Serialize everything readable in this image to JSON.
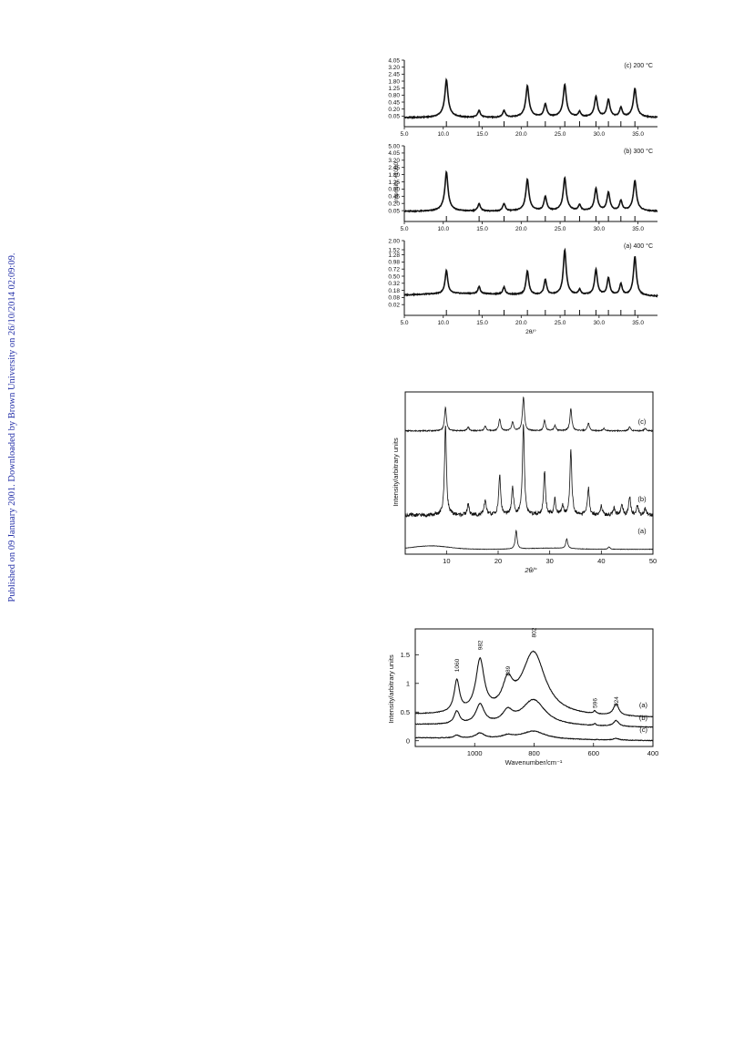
{
  "side_note": "Published on 09 January 2001. Downloaded by Brown University on 26/10/2014 02:09:09.",
  "chart_data": [
    {
      "type": "line",
      "figure": "xrd-temperature",
      "xlabel": "2θ/°",
      "ylabel": "Intensity ×1000",
      "xlim": [
        5.0,
        37.5
      ],
      "xticks": [
        "5.0",
        "10.0",
        "15.0",
        "20.0",
        "25.0",
        "30.0",
        "35.0"
      ],
      "x_tick_values": [
        5,
        10,
        15,
        20,
        25,
        30,
        35
      ],
      "sqrt_scale": true,
      "panels": [
        {
          "name": "(c) 200 °C",
          "ylim": [
            0,
            4.05
          ],
          "yticks": [
            "0.05",
            "0.20",
            "0.45",
            "0.80",
            "1.25",
            "1.80",
            "2.45",
            "3.20",
            "4.05"
          ],
          "y_tick_values": [
            0.05,
            0.2,
            0.45,
            0.8,
            1.25,
            1.8,
            2.45,
            3.2,
            4.05
          ],
          "peaks": [
            [
              10.4,
              1.9
            ],
            [
              14.6,
              0.13
            ],
            [
              17.8,
              0.13
            ],
            [
              20.8,
              1.4
            ],
            [
              23.1,
              0.35
            ],
            [
              25.6,
              1.5
            ],
            [
              27.5,
              0.1
            ],
            [
              29.6,
              0.7
            ],
            [
              31.2,
              0.55
            ],
            [
              32.8,
              0.22
            ],
            [
              34.6,
              1.2
            ]
          ],
          "baseline": 0.03
        },
        {
          "name": "(b) 300 °C",
          "ylim": [
            0,
            5.0
          ],
          "yticks": [
            "0.05",
            "0.20",
            "0.45",
            "0.80",
            "1.25",
            "1.80",
            "2.45",
            "3.20",
            "4.05",
            "5.00"
          ],
          "y_tick_values": [
            0.05,
            0.2,
            0.45,
            0.8,
            1.25,
            1.8,
            2.45,
            3.2,
            4.05,
            5.0
          ],
          "peaks": [
            [
              10.4,
              2.0
            ],
            [
              14.6,
              0.15
            ],
            [
              17.8,
              0.15
            ],
            [
              20.8,
              1.4
            ],
            [
              23.1,
              0.4
            ],
            [
              25.6,
              1.5
            ],
            [
              27.5,
              0.12
            ],
            [
              29.6,
              0.8
            ],
            [
              31.2,
              0.6
            ],
            [
              32.8,
              0.25
            ],
            [
              34.6,
              1.3
            ]
          ],
          "baseline": 0.04
        },
        {
          "name": "(a) 400 °C",
          "ylim": [
            0,
            2.0
          ],
          "yticks": [
            "0.02",
            "0.08",
            "0.18",
            "0.32",
            "0.50",
            "0.72",
            "0.98",
            "1.28",
            "1.52",
            "2.00"
          ],
          "y_tick_values": [
            0.02,
            0.08,
            0.18,
            0.32,
            0.5,
            0.72,
            0.98,
            1.28,
            1.52,
            2.0
          ],
          "peaks": [
            [
              10.4,
              0.55
            ],
            [
              14.6,
              0.12
            ],
            [
              17.8,
              0.12
            ],
            [
              20.8,
              0.55
            ],
            [
              23.1,
              0.3
            ],
            [
              25.6,
              1.4
            ],
            [
              27.5,
              0.08
            ],
            [
              29.6,
              0.6
            ],
            [
              31.2,
              0.35
            ],
            [
              32.8,
              0.2
            ],
            [
              34.6,
              1.1
            ]
          ],
          "baseline": 0.08,
          "hump": true
        }
      ]
    },
    {
      "type": "line",
      "figure": "xrd-samples",
      "xlabel": "2θ/°",
      "ylabel": "Intensity/arbitrary units",
      "xlim": [
        2,
        50
      ],
      "xticks": [
        "10",
        "20",
        "30",
        "40",
        "50"
      ],
      "x_tick_values": [
        10,
        20,
        30,
        40,
        50
      ],
      "series": [
        {
          "name": "(c)",
          "offset": 0.76,
          "scale": 0.16,
          "peaks": [
            [
              9.8,
              0.9
            ],
            [
              14.2,
              0.15
            ],
            [
              17.5,
              0.18
            ],
            [
              20.3,
              0.45
            ],
            [
              22.8,
              0.35
            ],
            [
              24.9,
              1.3
            ],
            [
              29.0,
              0.4
            ],
            [
              31.0,
              0.2
            ],
            [
              34.1,
              0.85
            ],
            [
              37.5,
              0.3
            ],
            [
              40.5,
              0.1
            ],
            [
              45.5,
              0.15
            ],
            [
              48.5,
              0.1
            ]
          ]
        },
        {
          "name": "(b)",
          "offset": 0.24,
          "scale": 0.56,
          "peaks": [
            [
              9.8,
              1.0
            ],
            [
              14.2,
              0.12
            ],
            [
              17.5,
              0.17
            ],
            [
              20.3,
              0.44
            ],
            [
              22.8,
              0.3
            ],
            [
              24.9,
              1.0
            ],
            [
              29.0,
              0.48
            ],
            [
              31.0,
              0.17
            ],
            [
              32.5,
              0.1
            ],
            [
              34.1,
              0.72
            ],
            [
              37.5,
              0.3
            ],
            [
              40.0,
              0.1
            ],
            [
              42.5,
              0.08
            ],
            [
              44.0,
              0.1
            ],
            [
              45.5,
              0.2
            ],
            [
              47.0,
              0.1
            ],
            [
              48.5,
              0.07
            ]
          ]
        },
        {
          "name": "(a)",
          "offset": 0.03,
          "scale": 0.06,
          "peaks": [
            [
              23.5,
              1.9
            ],
            [
              33.3,
              1.0
            ],
            [
              41.5,
              0.25
            ]
          ],
          "hump_center": 7.0,
          "hump_height": 0.35
        }
      ]
    },
    {
      "type": "line",
      "figure": "raman",
      "xlabel": "Wavenumber/cm⁻¹",
      "ylabel": "Intensity/arbitrary units",
      "xlim": [
        1200,
        400
      ],
      "ylim": [
        -0.1,
        1.95
      ],
      "xticks": [
        "1000",
        "800",
        "600",
        "400"
      ],
      "x_tick_values": [
        1000,
        800,
        600,
        400
      ],
      "yticks": [
        "0",
        "0.5",
        "1",
        "1.5"
      ],
      "y_tick_values": [
        0,
        0.5,
        1,
        1.5
      ],
      "peak_labels": [
        {
          "text": "1060",
          "x": 1060,
          "y": 1.2
        },
        {
          "text": "982",
          "x": 982,
          "y": 1.58
        },
        {
          "text": "889",
          "x": 889,
          "y": 1.13
        },
        {
          "text": "802",
          "x": 802,
          "y": 1.8
        },
        {
          "text": "596",
          "x": 596,
          "y": 0.57
        },
        {
          "text": "524",
          "x": 524,
          "y": 0.6
        }
      ],
      "series": [
        {
          "name": "(a)",
          "baseline": 0.45,
          "peaks": [
            [
              1060,
              0.55
            ],
            [
              982,
              0.9
            ],
            [
              889,
              0.45
            ],
            [
              802,
              1.1
            ],
            [
              596,
              0.05
            ],
            [
              524,
              0.2
            ]
          ]
        },
        {
          "name": "(b)",
          "baseline": 0.28,
          "peaks": [
            [
              1060,
              0.22
            ],
            [
              982,
              0.34
            ],
            [
              889,
              0.2
            ],
            [
              802,
              0.45
            ],
            [
              596,
              0.03
            ],
            [
              524,
              0.1
            ]
          ]
        },
        {
          "name": "(c)",
          "baseline": 0.05,
          "peaks": [
            [
              1060,
              0.05
            ],
            [
              982,
              0.09
            ],
            [
              889,
              0.05
            ],
            [
              802,
              0.14
            ],
            [
              524,
              0.03
            ]
          ]
        }
      ]
    }
  ]
}
